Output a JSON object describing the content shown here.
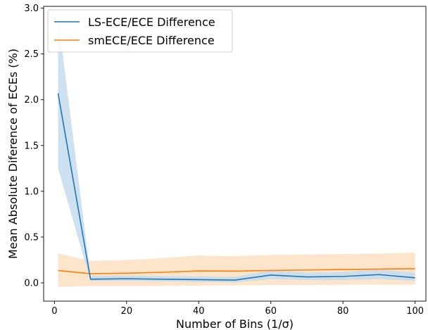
{
  "chart_data": {
    "type": "line",
    "title": "",
    "xlabel": "Number of Bins (1/σ)",
    "ylabel": "Mean Absolute Diference of ECEs (%)",
    "xlim": [
      -3,
      103
    ],
    "ylim": [
      -0.2,
      3.02
    ],
    "xticks": [
      0,
      20,
      40,
      60,
      80,
      100
    ],
    "xtick_labels": [
      "0",
      "20",
      "40",
      "60",
      "80",
      "100"
    ],
    "yticks": [
      0.0,
      0.5,
      1.0,
      1.5,
      2.0,
      2.5,
      3.0
    ],
    "ytick_labels": [
      "0.0",
      "0.5",
      "1.0",
      "1.5",
      "2.0",
      "2.5",
      "3.0"
    ],
    "grid": false,
    "legend_position": "top-left",
    "x": [
      1,
      10,
      20,
      30,
      40,
      50,
      60,
      70,
      80,
      90,
      100
    ],
    "series": [
      {
        "name": "LS-ECE/ECE Difference",
        "color": "#1f77b4",
        "band_color": "#c6dcee",
        "values": [
          2.07,
          0.04,
          0.045,
          0.04,
          0.035,
          0.03,
          0.085,
          0.065,
          0.07,
          0.09,
          0.055
        ],
        "lower": [
          1.25,
          0.02,
          0.02,
          0.015,
          0.01,
          0.005,
          0.04,
          0.03,
          0.03,
          0.04,
          0.02
        ],
        "upper": [
          2.9,
          0.08,
          0.08,
          0.075,
          0.07,
          0.065,
          0.14,
          0.11,
          0.12,
          0.15,
          0.11
        ]
      },
      {
        "name": "smECE/ECE Difference",
        "color": "#ff7f0e",
        "band_color": "#fde0c3",
        "values": [
          0.135,
          0.1,
          0.105,
          0.115,
          0.13,
          0.128,
          0.135,
          0.14,
          0.145,
          0.15,
          0.155
        ],
        "lower": [
          -0.045,
          -0.035,
          -0.035,
          -0.035,
          -0.03,
          -0.028,
          -0.025,
          -0.025,
          -0.02,
          -0.02,
          -0.02
        ],
        "upper": [
          0.32,
          0.24,
          0.25,
          0.27,
          0.3,
          0.29,
          0.305,
          0.31,
          0.315,
          0.32,
          0.33
        ]
      }
    ]
  }
}
